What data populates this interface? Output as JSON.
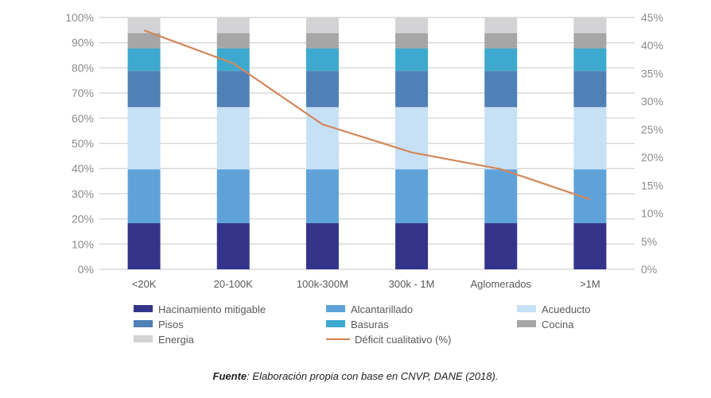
{
  "chart_data": {
    "type": "bar",
    "stacked": true,
    "categories": [
      "<20K",
      "20-100K",
      "100k-300M",
      "300k - 1M",
      "Aglomerados",
      ">1M"
    ],
    "left_axis": {
      "ticks": [
        "0%",
        "10%",
        "20%",
        "30%",
        "40%",
        "50%",
        "60%",
        "70%",
        "80%",
        "90%",
        "100%"
      ],
      "ylim": [
        0,
        100
      ]
    },
    "right_axis": {
      "ticks": [
        "0%",
        "5%",
        "10%",
        "15%",
        "20%",
        "25%",
        "30%",
        "35%",
        "40%",
        "45%"
      ],
      "ylim": [
        0,
        45
      ]
    },
    "grid": true,
    "legend_placement": "bottom",
    "series": [
      {
        "name": "Hacinamiento mitigable",
        "color": "#33348a",
        "values": [
          18.3,
          18.3,
          18.3,
          18.3,
          18.3,
          18.3
        ]
      },
      {
        "name": "Alcantarillado",
        "color": "#5fa2da",
        "values": [
          21.4,
          21.4,
          21.4,
          21.4,
          21.4,
          21.4
        ]
      },
      {
        "name": "Acueducto",
        "color": "#c6e0f5",
        "values": [
          24.7,
          24.7,
          24.7,
          24.7,
          24.7,
          24.7
        ]
      },
      {
        "name": "Pisos",
        "color": "#4f81b6",
        "values": [
          14.4,
          14.4,
          14.4,
          14.4,
          14.4,
          14.4
        ]
      },
      {
        "name": "Basuras",
        "color": "#3ea9cf",
        "values": [
          8.9,
          8.9,
          8.9,
          8.9,
          8.9,
          8.9
        ]
      },
      {
        "name": "Cocina",
        "color": "#a6a6a6",
        "values": [
          6.1,
          6.1,
          6.1,
          6.1,
          6.1,
          6.1
        ]
      },
      {
        "name": "Energia",
        "color": "#d3d3d5",
        "values": [
          6.2,
          6.2,
          6.2,
          6.2,
          6.2,
          6.2
        ]
      }
    ],
    "line": {
      "name": "Déficit cualitativo (%)",
      "color": "#d4875a",
      "axis": "right",
      "values": [
        42.7,
        36.8,
        25.9,
        20.9,
        17.9,
        12.5
      ]
    }
  },
  "source": {
    "label": "Fuente",
    "text": ": Elaboración propia con base en CNVP, DANE (2018)."
  }
}
